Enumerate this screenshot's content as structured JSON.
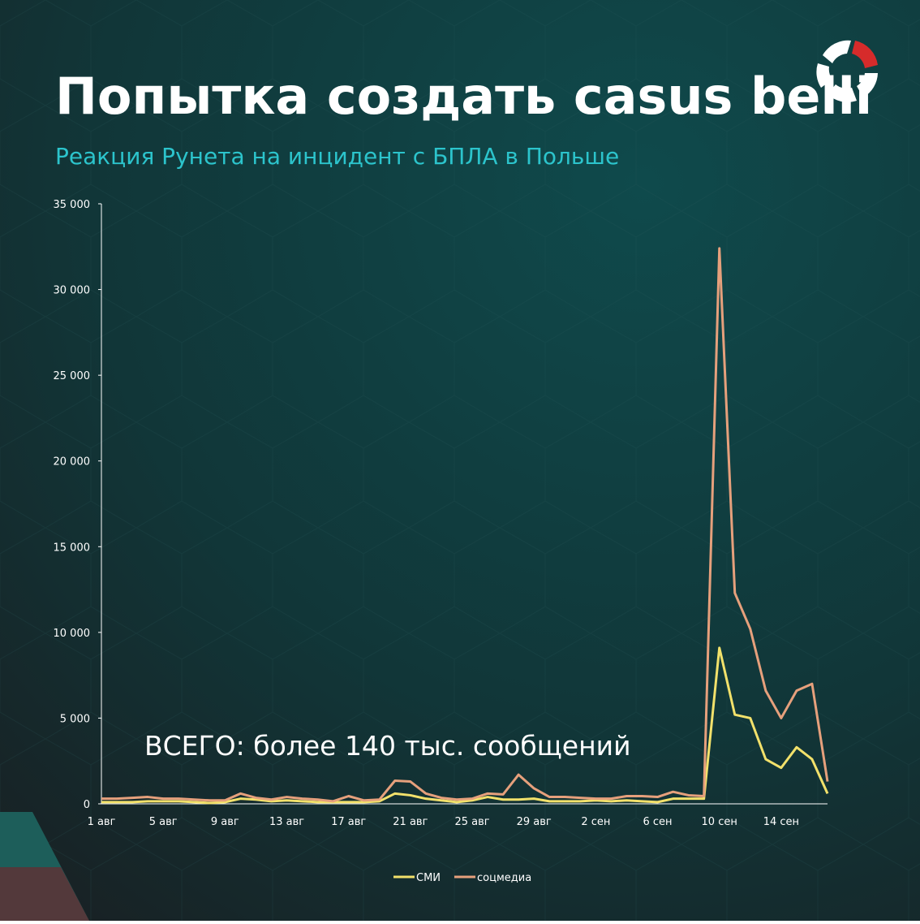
{
  "chart_data": {
    "type": "line",
    "title": "Попытка создать casus belli",
    "subtitle": "Реакция Рунета на инцидент с БПЛА в Польше",
    "annotations": [
      "ВСЕГО: более 140 тыс. сообщений"
    ],
    "categories": [
      "1 авг",
      null,
      null,
      null,
      "5 авг",
      null,
      null,
      null,
      "9 авг",
      null,
      null,
      null,
      "13 авг",
      null,
      null,
      null,
      "17 авг",
      null,
      null,
      null,
      "21 авг",
      null,
      null,
      null,
      "25 авг",
      null,
      null,
      null,
      "29 авг",
      null,
      null,
      null,
      "2 сен",
      null,
      null,
      null,
      "6 сен",
      null,
      null,
      null,
      "10 сен",
      null,
      null,
      null,
      "14 сен",
      null,
      null,
      null
    ],
    "series": [
      {
        "name": "СМИ",
        "color": "#f2e16b",
        "values": [
          100,
          100,
          100,
          150,
          150,
          150,
          100,
          50,
          100,
          300,
          250,
          150,
          200,
          150,
          100,
          100,
          100,
          100,
          150,
          600,
          500,
          300,
          200,
          100,
          200,
          400,
          250,
          250,
          300,
          150,
          150,
          150,
          200,
          150,
          200,
          150,
          100,
          300,
          300,
          300,
          9100,
          5200,
          5000,
          2600,
          2100,
          3300,
          2600,
          600
        ]
      },
      {
        "name": "соцмедиа",
        "color": "#e6a07c",
        "values": [
          300,
          300,
          350,
          400,
          300,
          300,
          250,
          200,
          200,
          600,
          350,
          250,
          400,
          300,
          250,
          150,
          450,
          200,
          250,
          1350,
          1300,
          600,
          350,
          250,
          300,
          600,
          550,
          1700,
          900,
          400,
          400,
          350,
          300,
          300,
          450,
          450,
          400,
          700,
          500,
          450,
          32400,
          12300,
          10200,
          6600,
          5000,
          6600,
          7000,
          1300
        ]
      }
    ],
    "ylim": [
      0,
      35000
    ],
    "yticks": [
      0,
      {
        "value": 5000,
        "label": "5 000"
      },
      {
        "value": 10000,
        "label": "10 000"
      },
      {
        "value": 15000,
        "label": "15 000"
      },
      {
        "value": 20000,
        "label": "20 000"
      },
      {
        "value": 25000,
        "label": "25 000"
      },
      {
        "value": 30000,
        "label": "30 000"
      },
      {
        "value": 35000,
        "label": "35 000"
      }
    ],
    "grid": false,
    "legend": "bottom"
  }
}
